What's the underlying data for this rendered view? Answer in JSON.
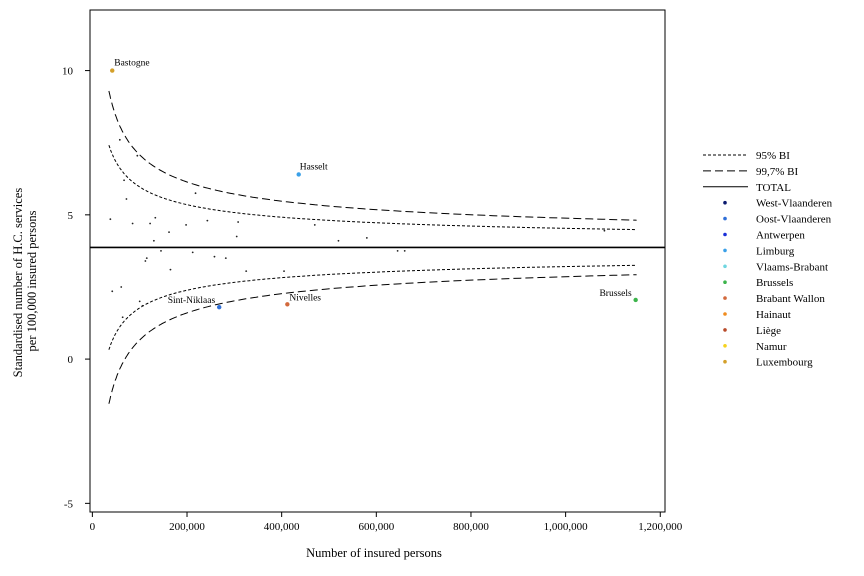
{
  "chart_data": {
    "type": "scatter",
    "xlabel": "Number of insured persons",
    "ylabel_lines": [
      "Standardised number of H.C. services",
      "per 100,000 insured persons"
    ],
    "x_ticks": [
      0,
      200000,
      400000,
      600000,
      800000,
      1000000,
      1200000
    ],
    "x_tick_labels": [
      "0",
      "200,000",
      "400,000",
      "600,000",
      "800,000",
      "1,000,000",
      "1,200,000"
    ],
    "y_ticks": [
      10,
      5,
      0,
      -5
    ],
    "y_tick_labels": [
      "10",
      "5",
      "0",
      "-5"
    ],
    "xlim": [
      -5000,
      1210000
    ],
    "ylim": [
      -5.3,
      12.1
    ],
    "total_line": 3.87,
    "legend_position": "right",
    "legend": [
      {
        "name": "95% BI",
        "kind": "line",
        "dash": "3,2"
      },
      {
        "name": "99,7% BI",
        "kind": "line",
        "dash": "8,4"
      },
      {
        "name": "TOTAL",
        "kind": "line",
        "dash": ""
      },
      {
        "name": "West-Vlaanderen",
        "kind": "dot",
        "color": "#0a1a6e"
      },
      {
        "name": "Oost-Vlaanderen",
        "kind": "dot",
        "color": "#2f6fd8"
      },
      {
        "name": "Antwerpen",
        "kind": "dot",
        "color": "#1a2fd8"
      },
      {
        "name": "Limburg",
        "kind": "dot",
        "color": "#3aa0e8"
      },
      {
        "name": "Vlaams-Brabant",
        "kind": "dot",
        "color": "#6fd6e0"
      },
      {
        "name": "Brussels",
        "kind": "dot",
        "color": "#3cb44b"
      },
      {
        "name": "Brabant Wallon",
        "kind": "dot",
        "color": "#d2693c"
      },
      {
        "name": "Hainaut",
        "kind": "dot",
        "color": "#f08c1e"
      },
      {
        "name": "Liège",
        "kind": "dot",
        "color": "#b84a2a"
      },
      {
        "name": "Namur",
        "kind": "dot",
        "color": "#f5d21e"
      },
      {
        "name": "Luxembourg",
        "kind": "dot",
        "color": "#d4a02a"
      }
    ],
    "labeled_points": [
      {
        "label": "Bastogne",
        "x": 42000,
        "y": 10.0,
        "color": "#d4a02a",
        "anchor": "start",
        "dx": 2,
        "dy": -5
      },
      {
        "label": "Hasselt",
        "x": 436000,
        "y": 6.4,
        "color": "#3aa0e8",
        "anchor": "start",
        "dx": 1,
        "dy": -5
      },
      {
        "label": "Sint-Niklaas",
        "x": 268000,
        "y": 1.8,
        "color": "#2f6fd8",
        "anchor": "end",
        "dx": -4,
        "dy": -4
      },
      {
        "label": "Nivelles",
        "x": 412000,
        "y": 1.9,
        "color": "#d2693c",
        "anchor": "start",
        "dx": 2,
        "dy": -4
      },
      {
        "label": "Brussels",
        "x": 1148000,
        "y": 2.05,
        "color": "#3cb44b",
        "anchor": "end",
        "dx": -4,
        "dy": -4
      }
    ],
    "other_points": [
      [
        38000,
        4.85
      ],
      [
        42000,
        2.35
      ],
      [
        58000,
        7.6
      ],
      [
        61000,
        2.5
      ],
      [
        64000,
        1.45
      ],
      [
        67000,
        6.2
      ],
      [
        72000,
        5.55
      ],
      [
        85000,
        4.7
      ],
      [
        95000,
        7.05
      ],
      [
        100000,
        2.0
      ],
      [
        106000,
        1.85
      ],
      [
        112000,
        3.4
      ],
      [
        115000,
        3.5
      ],
      [
        122000,
        4.7
      ],
      [
        130000,
        4.1
      ],
      [
        133000,
        4.9
      ],
      [
        145000,
        3.75
      ],
      [
        162000,
        4.4
      ],
      [
        165000,
        3.1
      ],
      [
        198000,
        4.65
      ],
      [
        212000,
        3.7
      ],
      [
        218000,
        5.75
      ],
      [
        243000,
        4.8
      ],
      [
        258000,
        3.55
      ],
      [
        282000,
        3.5
      ],
      [
        305000,
        4.25
      ],
      [
        308000,
        4.75
      ],
      [
        325000,
        3.05
      ],
      [
        405000,
        3.05
      ],
      [
        470000,
        4.65
      ],
      [
        520000,
        4.1
      ],
      [
        580000,
        4.2
      ],
      [
        645000,
        3.75
      ],
      [
        660000,
        3.75
      ],
      [
        1082000,
        4.45
      ]
    ],
    "bands": {
      "x_start": 35000,
      "x_end": 1150000,
      "a_95": 20.96,
      "a_997": 32.07
    }
  }
}
